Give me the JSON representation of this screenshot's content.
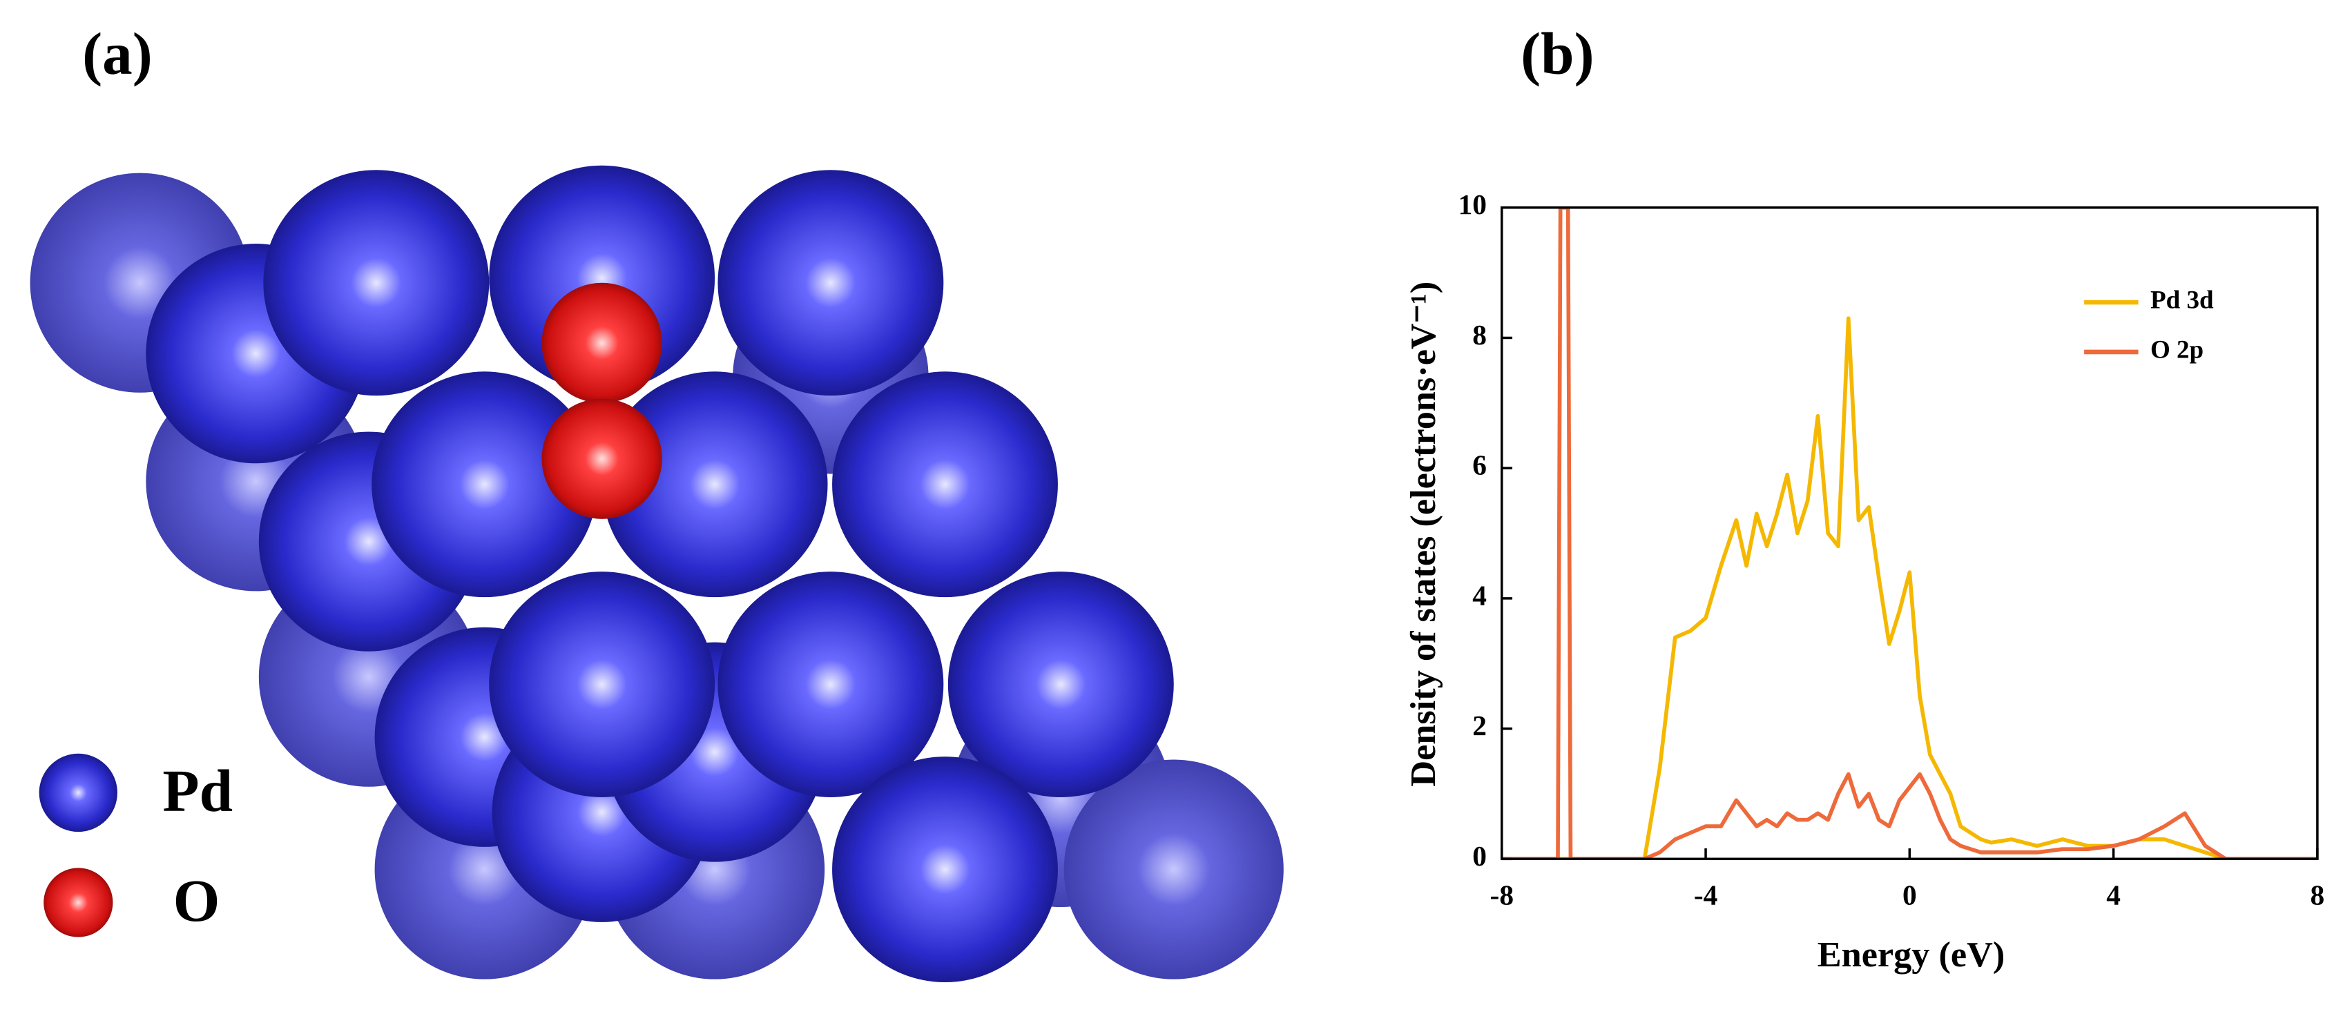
{
  "panel_labels": [
    "(a)",
    "(b)"
  ],
  "structure_legend": [
    "Pd",
    "O"
  ],
  "chart_data": {
    "type": "line",
    "xlabel": "Energy (eV)",
    "ylabel": "Density of states (electrons·eV⁻¹)",
    "xlim": [
      -8,
      8
    ],
    "xticks": [
      -8,
      -4,
      0,
      4,
      8
    ],
    "ylim": [
      0,
      10
    ],
    "yticks": [
      0,
      2,
      4,
      6,
      8,
      10
    ],
    "legend": "upper right",
    "x": [
      -8,
      -7,
      -6.9,
      -6.85,
      -6.7,
      -6.65,
      -6,
      -5.2,
      -4.9,
      -4.6,
      -4.3,
      -4,
      -3.7,
      -3.4,
      -3.2,
      -3,
      -2.8,
      -2.6,
      -2.4,
      -2.2,
      -2,
      -1.8,
      -1.6,
      -1.4,
      -1.2,
      -1,
      -0.8,
      -0.6,
      -0.4,
      -0.2,
      0,
      0.2,
      0.4,
      0.6,
      0.8,
      1,
      1.2,
      1.4,
      1.6,
      2,
      2.5,
      3,
      3.5,
      4,
      4.5,
      5,
      5.4,
      5.8,
      6.2,
      8
    ],
    "series": [
      {
        "name": "Pd 3d",
        "color": "#f5b800",
        "values": [
          0,
          0,
          0,
          0,
          0,
          0,
          0,
          0,
          1.4,
          3.4,
          3.5,
          3.7,
          4.5,
          5.2,
          4.5,
          5.3,
          4.8,
          5.3,
          5.9,
          5.0,
          5.5,
          6.8,
          5.0,
          4.8,
          8.3,
          5.2,
          5.4,
          4.3,
          3.3,
          3.8,
          4.4,
          2.5,
          1.6,
          1.3,
          1.0,
          0.5,
          0.4,
          0.3,
          0.25,
          0.3,
          0.2,
          0.3,
          0.2,
          0.2,
          0.3,
          0.3,
          0.2,
          0.1,
          0,
          0
        ]
      },
      {
        "name": "O 2p",
        "color": "#ee6a3a",
        "values": [
          0,
          0,
          0,
          10,
          10,
          0,
          0,
          0,
          0.1,
          0.3,
          0.4,
          0.5,
          0.5,
          0.9,
          0.7,
          0.5,
          0.6,
          0.5,
          0.7,
          0.6,
          0.6,
          0.7,
          0.6,
          1.0,
          1.3,
          0.8,
          1.0,
          0.6,
          0.5,
          0.9,
          1.1,
          1.3,
          1.0,
          0.6,
          0.3,
          0.2,
          0.15,
          0.1,
          0.1,
          0.1,
          0.1,
          0.15,
          0.15,
          0.2,
          0.3,
          0.5,
          0.7,
          0.2,
          0,
          0
        ]
      }
    ]
  }
}
